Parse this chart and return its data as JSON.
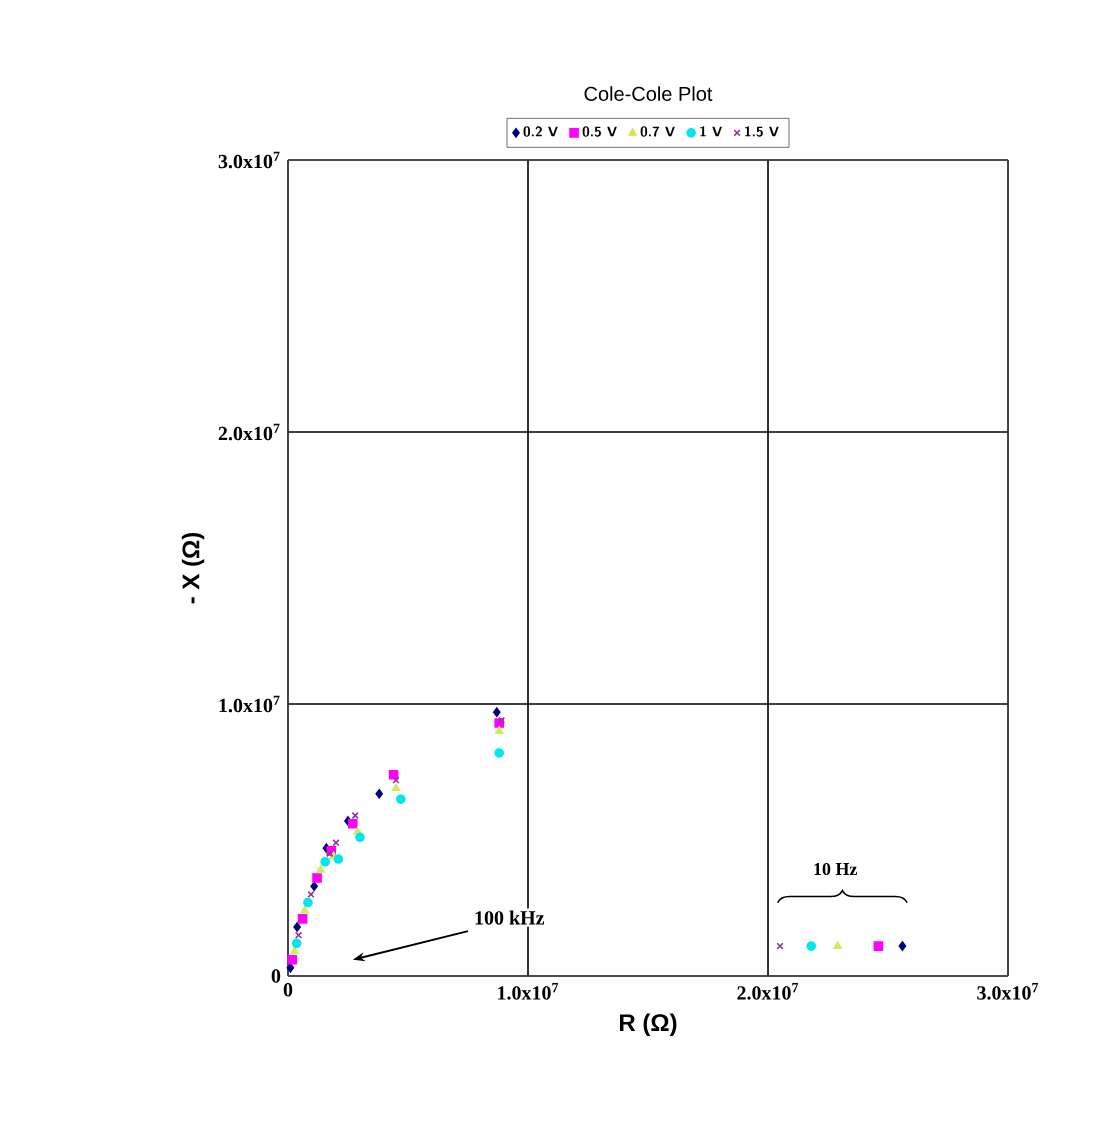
{
  "chart_data": {
    "type": "scatter",
    "title": "Cole-Cole Plot",
    "xlabel": "R (Ω)",
    "ylabel": "- X (Ω)",
    "xlim": [
      0,
      30000000
    ],
    "ylim": [
      0,
      30000000
    ],
    "xticks": [
      0,
      {
        "value": 10000000,
        "label": "1.0x10$^{7}$"
      },
      {
        "value": 20000000,
        "label": "2.0x10$^{7}$"
      },
      {
        "value": 30000000,
        "label": "3.0x10$^{7}$"
      }
    ],
    "yticks": [
      0,
      {
        "value": 10000000,
        "label": "1.0x10$^{7}$"
      },
      {
        "value": 20000000,
        "label": "2.0x10$^{7}$"
      },
      {
        "value": 30000000,
        "label": "3.0x10$^{7}$"
      }
    ],
    "grid": true,
    "legend": "top",
    "annotations": [
      "100 kHz",
      "10 Hz"
    ],
    "series": [
      {
        "name": "0.2 V",
        "color": "#000080",
        "marker": "diamond",
        "x": [
          100000,
          380000,
          1090000,
          1600000,
          2500000,
          3800000,
          8700000,
          25600000
        ],
        "values": [
          300000,
          1800000,
          3300000,
          4700000,
          5700000,
          6700000,
          9700000,
          1100000
        ]
      },
      {
        "name": "0.5 V",
        "color": "#ff00ff",
        "marker": "square",
        "x": [
          180000,
          610000,
          1210000,
          1800000,
          2700000,
          4400000,
          8800000,
          24600000
        ],
        "values": [
          600000,
          2100000,
          3600000,
          4600000,
          5600000,
          7400000,
          9300000,
          1100000
        ]
      },
      {
        "name": "0.7 V",
        "color": "#ccee55",
        "marker": "triangle",
        "x": [
          270000,
          700000,
          1360000,
          1900000,
          2900000,
          4500000,
          8800000,
          22900000
        ],
        "values": [
          900000,
          2400000,
          3900000,
          4400000,
          5300000,
          6900000,
          9000000,
          1100000
        ]
      },
      {
        "name": "1 V",
        "color": "#00e5ee",
        "marker": "circle",
        "x": [
          360000,
          830000,
          1550000,
          2100000,
          3000000,
          4700000,
          8800000,
          21800000
        ],
        "values": [
          1200000,
          2700000,
          4200000,
          4300000,
          5100000,
          6500000,
          8200000,
          1100000
        ]
      },
      {
        "name": "1.5 V",
        "color": "#993399",
        "marker": "cross",
        "x": [
          440000,
          960000,
          1740000,
          2000000,
          2800000,
          4500000,
          8900000,
          20500000
        ],
        "values": [
          1500000,
          3000000,
          4500000,
          4900000,
          5900000,
          7200000,
          9400000,
          1100000
        ]
      }
    ]
  }
}
